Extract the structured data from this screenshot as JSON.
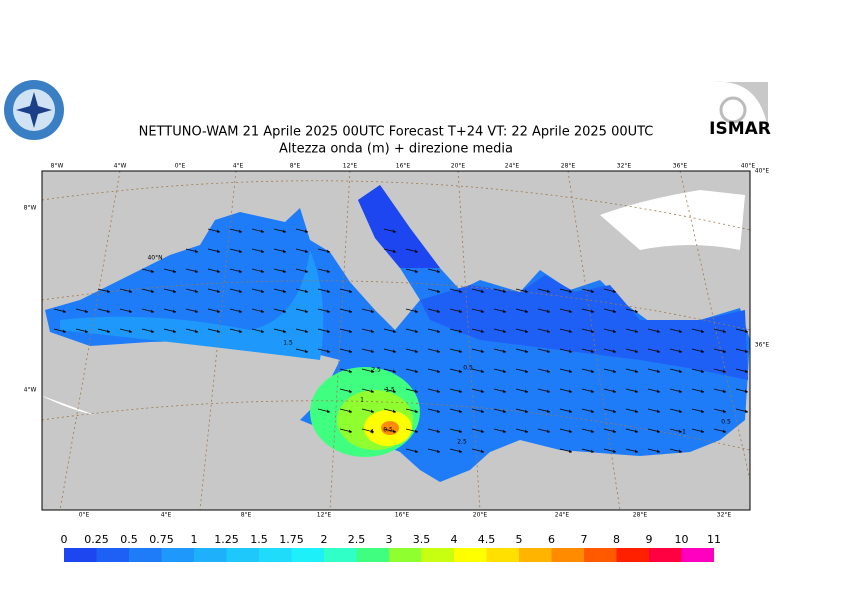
{
  "header": {
    "title": "NETTUNO-WAM  21   Aprile  2025 00UTC Forecast T+24 VT: 22   Aprile  2025 00UTC",
    "subtitle": "Altezza onda (m) + direzione media",
    "logo_right": "ISMAR"
  },
  "map": {
    "top_lon_labels": [
      "8°W",
      "4°W",
      "0°E",
      "4°E",
      "8°E",
      "12°E",
      "16°E",
      "20°E",
      "24°E",
      "28°E",
      "32°E",
      "36°E",
      "40°E"
    ],
    "bottom_lon_labels": [
      "0°E",
      "4°E",
      "8°E",
      "12°E",
      "16°E",
      "20°E",
      "24°E",
      "28°E",
      "32°E"
    ],
    "left_labels": [
      "8°W",
      "4°W"
    ],
    "right_labels": [
      "40°E",
      "36°E"
    ],
    "inner_label": "40°N",
    "contour_labels": [
      "1.5",
      "0.5",
      "1",
      "0.5",
      "2.5",
      "1.5",
      "4",
      "2.5",
      "1",
      "0.5"
    ]
  },
  "colorbar": {
    "levels": [
      0,
      0.25,
      0.5,
      0.75,
      1,
      1.25,
      1.5,
      1.75,
      2,
      2.5,
      3,
      3.5,
      4,
      4.5,
      5,
      6,
      7,
      8,
      9,
      10,
      11
    ],
    "colors": [
      "#1e46f0",
      "#1e60f5",
      "#1e7cf8",
      "#1e98fa",
      "#1eb0fa",
      "#1ec8fa",
      "#1edcfa",
      "#1ef0fa",
      "#30ffc8",
      "#40ff80",
      "#90ff30",
      "#c8ff10",
      "#ffff00",
      "#ffe000",
      "#ffb400",
      "#ff8c00",
      "#ff5a00",
      "#ff2000",
      "#ff0040",
      "#ff00c0"
    ]
  }
}
